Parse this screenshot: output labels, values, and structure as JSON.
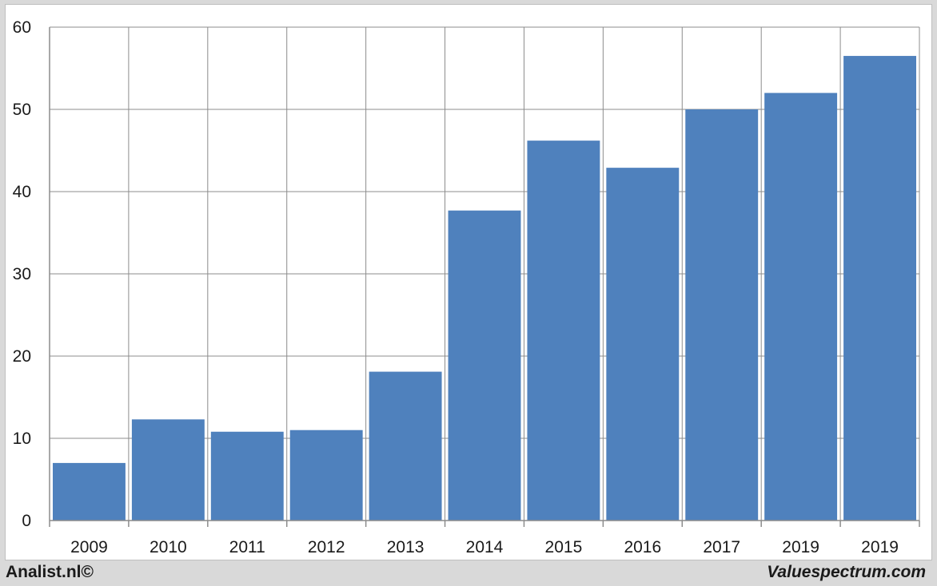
{
  "chart_data": {
    "type": "bar",
    "categories": [
      "2009",
      "2010",
      "2011",
      "2012",
      "2013",
      "2014",
      "2015",
      "2016",
      "2017",
      "2019",
      "2019"
    ],
    "values": [
      7.0,
      12.3,
      10.8,
      11.0,
      18.1,
      37.7,
      46.2,
      42.9,
      50.0,
      52.0,
      56.5
    ],
    "ylim": [
      0,
      60
    ],
    "yticks": [
      0,
      10,
      20,
      30,
      40,
      50,
      60
    ],
    "grid": true,
    "title": "",
    "xlabel": "",
    "ylabel": "",
    "bar_color": "#4f81bd"
  },
  "footer": {
    "left_credit": "Analist.nl©",
    "right_credit": "Valuespectrum.com"
  }
}
